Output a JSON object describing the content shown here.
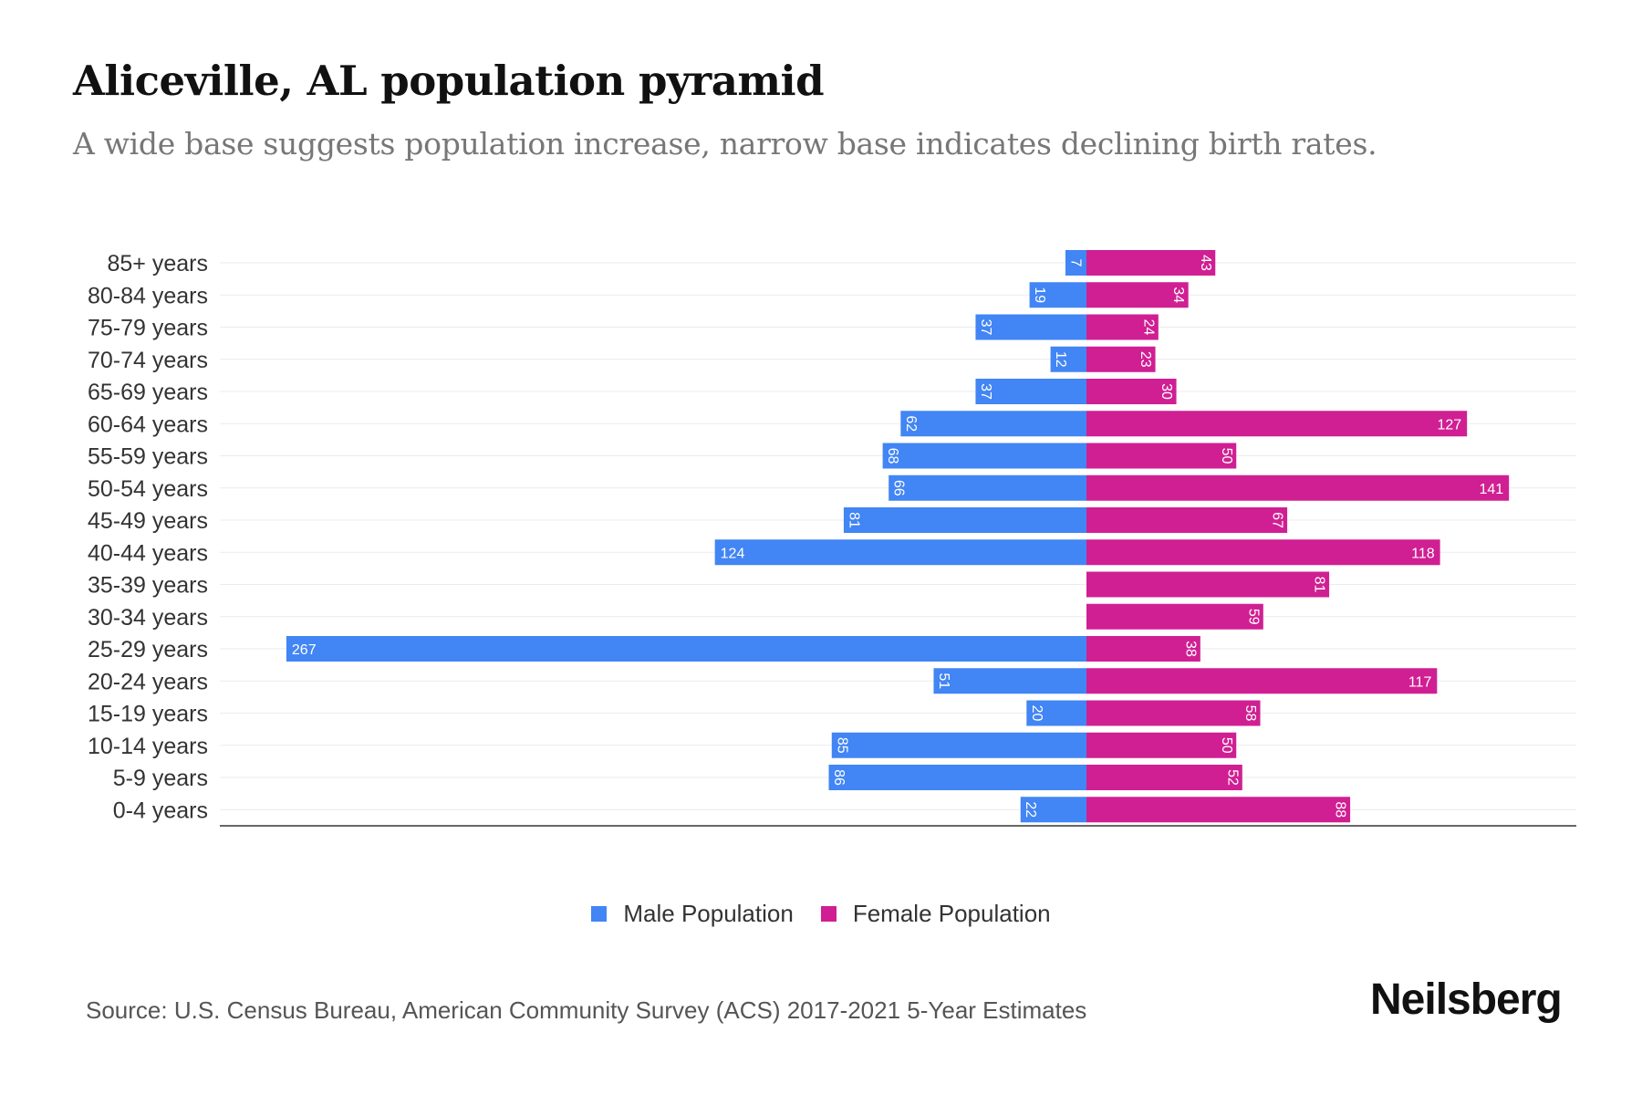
{
  "title": "Aliceville, AL population pyramid",
  "subtitle": "A wide base suggests population increase, narrow base indicates declining birth rates.",
  "source": "Source: U.S. Census Bureau, American Community Survey (ACS) 2017-2021 5-Year Estimates",
  "logo": "Neilsberg",
  "chart_data": {
    "type": "bar",
    "orientation": "horizontal-pyramid",
    "categories": [
      "85+ years",
      "80-84 years",
      "75-79 years",
      "70-74 years",
      "65-69 years",
      "60-64 years",
      "55-59 years",
      "50-54 years",
      "45-49 years",
      "40-44 years",
      "35-39 years",
      "30-34 years",
      "25-29 years",
      "20-24 years",
      "15-19 years",
      "10-14 years",
      "5-9 years",
      "0-4 years"
    ],
    "series": [
      {
        "name": "Male Population",
        "color": "#4285f4",
        "values": [
          7,
          19,
          37,
          12,
          37,
          62,
          68,
          66,
          81,
          124,
          0,
          0,
          267,
          51,
          20,
          85,
          86,
          22
        ]
      },
      {
        "name": "Female Population",
        "color": "#d01f93",
        "values": [
          43,
          34,
          24,
          23,
          30,
          127,
          50,
          141,
          67,
          118,
          81,
          59,
          38,
          117,
          58,
          50,
          52,
          88
        ]
      }
    ],
    "legend_position": "bottom",
    "grid": true
  }
}
